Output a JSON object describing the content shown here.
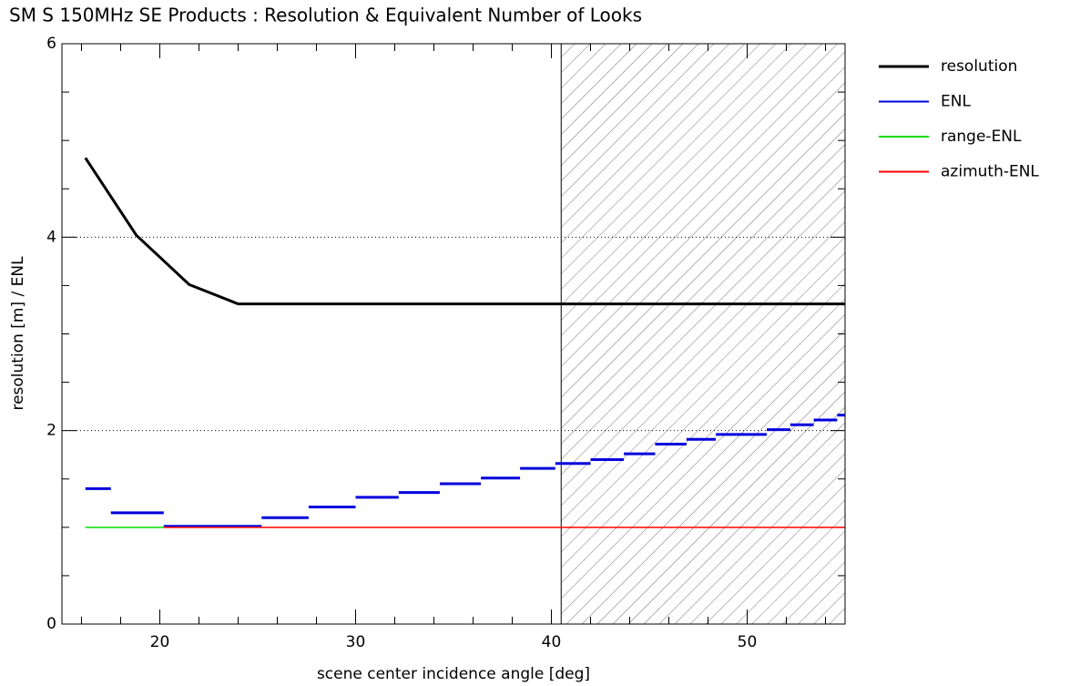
{
  "chart_data": {
    "type": "line",
    "title": "SM S 150MHz SE Products : Resolution & Equivalent Number of Looks",
    "x_label": "scene center incidence angle [deg]",
    "y_label": "resolution [m] / ENL",
    "xlim": [
      15,
      55
    ],
    "ylim": [
      0,
      6
    ],
    "xticks": [
      20,
      30,
      40,
      50
    ],
    "xminor_ticks": [
      16,
      18,
      22,
      24,
      26,
      28,
      32,
      34,
      36,
      38,
      42,
      44,
      46,
      48,
      52,
      54
    ],
    "yticks": [
      0,
      2,
      4,
      6
    ],
    "yminor_ticks": [
      0.5,
      1,
      1.5,
      2.5,
      3,
      3.5,
      4.5,
      5,
      5.5
    ],
    "grid": true,
    "shaded_region": [
      40.5,
      55
    ],
    "legend": "right",
    "series": [
      {
        "name": "resolution",
        "color": "#000000",
        "x": [
          16.2,
          18.8,
          21.5,
          24,
          55
        ],
        "values": [
          4.82,
          4.02,
          3.51,
          3.31,
          3.31
        ]
      },
      {
        "name": "ENL",
        "color": "#0000dd",
        "x_start": [
          16.2,
          17.5,
          20.2,
          25.2,
          27.6,
          30.0,
          32.2,
          34.3,
          36.4,
          38.4,
          40.2,
          42.0,
          43.7,
          45.3,
          46.9,
          48.4,
          51.0,
          52.2,
          53.4,
          54.6
        ],
        "x_end": [
          17.5,
          20.2,
          25.2,
          27.6,
          30.0,
          32.2,
          34.3,
          36.4,
          38.4,
          40.2,
          42.0,
          43.7,
          45.3,
          46.9,
          48.4,
          51.0,
          52.2,
          53.4,
          54.6,
          55
        ],
        "values": [
          1.4,
          1.15,
          1.01,
          1.1,
          1.21,
          1.31,
          1.36,
          1.45,
          1.51,
          1.61,
          1.66,
          1.7,
          1.76,
          1.86,
          1.91,
          1.96,
          2.01,
          2.06,
          2.11,
          2.16
        ]
      },
      {
        "name": "range-ENL",
        "color": "#00dd00",
        "x": [
          16.2,
          20.2
        ],
        "values": [
          1,
          1
        ]
      },
      {
        "name": "azimuth-ENL",
        "color": "#ff0000",
        "x": [
          20.2,
          55
        ],
        "values": [
          1,
          1
        ]
      }
    ]
  }
}
